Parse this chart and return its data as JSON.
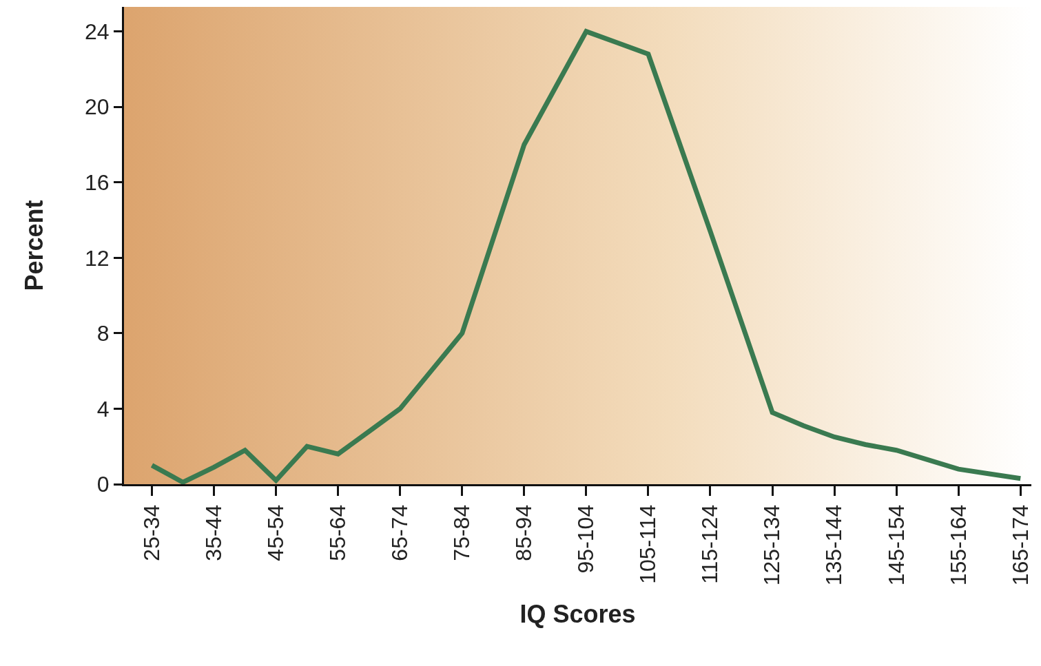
{
  "chart_data": {
    "type": "line",
    "xlabel": "IQ Scores",
    "ylabel": "Percent",
    "categories": [
      "25-34",
      null,
      "35-44",
      null,
      "45-54",
      null,
      "55-64",
      null,
      "65-74",
      null,
      "75-84",
      null,
      "85-94",
      null,
      "95-104",
      null,
      "105-114",
      null,
      "115-124",
      null,
      "125-134",
      null,
      "135-144",
      null,
      "145-154",
      null,
      "155-164",
      null,
      "165-174"
    ],
    "series": [
      {
        "color": "#3a7a50",
        "values": [
          1.0,
          0.1,
          0.9,
          1.8,
          0.2,
          2.0,
          1.6,
          2.8,
          4.0,
          6.0,
          8.0,
          13.0,
          18.0,
          21.0,
          24.0,
          23.4,
          22.8,
          18.1,
          13.4,
          8.6,
          3.8,
          3.1,
          2.5,
          2.1,
          1.8,
          1.3,
          0.8,
          0.55,
          0.3
        ]
      }
    ],
    "ylim": [
      0,
      25.3
    ],
    "yticks": [
      0,
      4,
      8,
      12,
      16,
      20,
      24
    ],
    "grid": false,
    "marker": "none",
    "line_style": "solid"
  }
}
